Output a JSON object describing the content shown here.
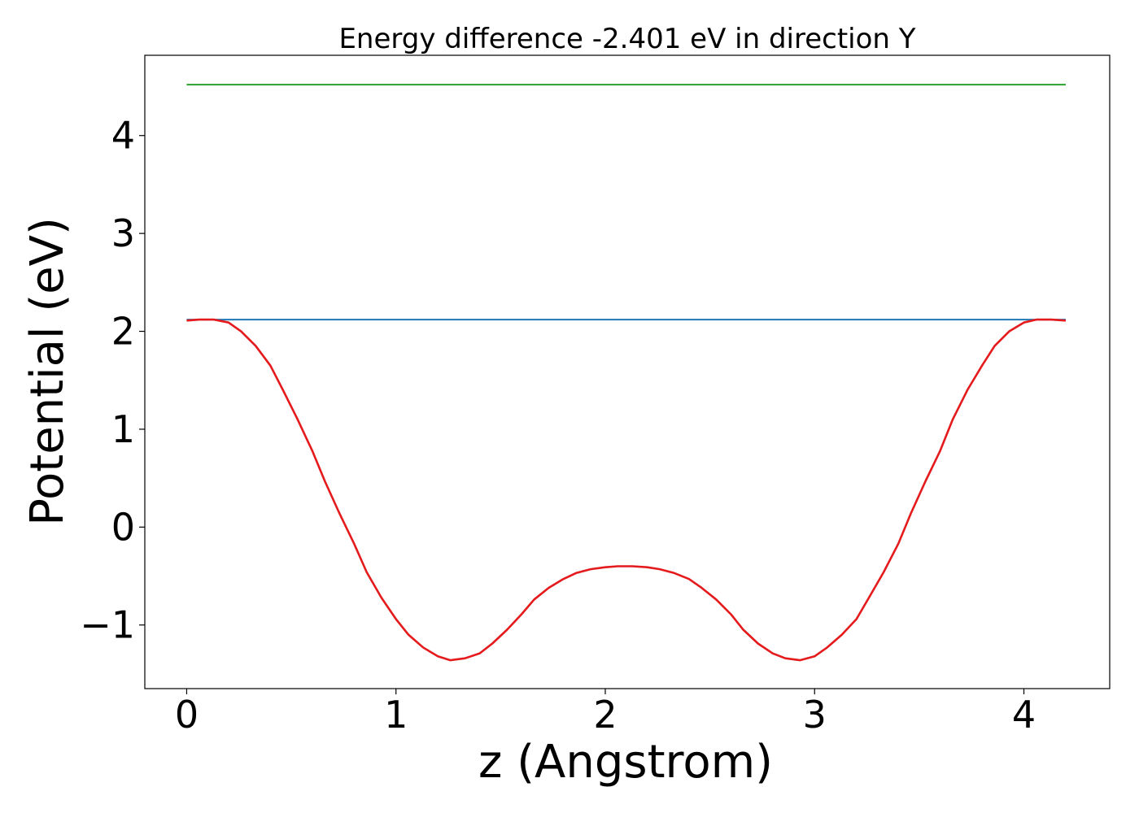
{
  "chart_data": {
    "type": "line",
    "title": "Energy difference -2.401 eV in direction Y",
    "xlabel": "z (Angstrom)",
    "ylabel": "Potential (eV)",
    "xlim": [
      -0.2,
      4.41
    ],
    "ylim": [
      -1.65,
      4.82
    ],
    "x_ticks": [
      {
        "value": 0,
        "label": "0"
      },
      {
        "value": 1,
        "label": "1"
      },
      {
        "value": 2,
        "label": "2"
      },
      {
        "value": 3,
        "label": "3"
      },
      {
        "value": 4,
        "label": "4"
      }
    ],
    "y_ticks": [
      {
        "value": -1,
        "label": "−1"
      },
      {
        "value": 0,
        "label": "0"
      },
      {
        "value": 1,
        "label": "1"
      },
      {
        "value": 2,
        "label": "2"
      },
      {
        "value": 3,
        "label": "3"
      },
      {
        "value": 4,
        "label": "4"
      }
    ],
    "grid": false,
    "series": [
      {
        "color": "#2ca02c",
        "x": [
          0,
          4.2
        ],
        "y": [
          4.52,
          4.52
        ]
      },
      {
        "color": "#1f77b4",
        "x": [
          0,
          4.2
        ],
        "y": [
          2.12,
          2.12
        ]
      },
      {
        "color": "#e41a1c",
        "x": [
          0,
          0.06,
          0.13,
          0.2,
          0.26,
          0.33,
          0.4,
          0.46,
          0.53,
          0.6,
          0.66,
          0.73,
          0.8,
          0.86,
          0.93,
          1.0,
          1.06,
          1.13,
          1.2,
          1.26,
          1.33,
          1.4,
          1.46,
          1.53,
          1.6,
          1.66,
          1.73,
          1.8,
          1.86,
          1.93,
          2.0,
          2.06,
          2.13,
          2.2,
          2.26,
          2.33,
          2.4,
          2.46,
          2.53,
          2.6,
          2.66,
          2.73,
          2.8,
          2.86,
          2.93,
          3.0,
          3.06,
          3.13,
          3.2,
          3.26,
          3.33,
          3.4,
          3.46,
          3.53,
          3.6,
          3.66,
          3.73,
          3.8,
          3.86,
          3.93,
          4.0,
          4.06,
          4.13,
          4.2
        ],
        "y": [
          2.11,
          2.12,
          2.12,
          2.09,
          2.0,
          1.85,
          1.65,
          1.4,
          1.1,
          0.78,
          0.47,
          0.14,
          -0.17,
          -0.46,
          -0.72,
          -0.94,
          -1.1,
          -1.23,
          -1.32,
          -1.36,
          -1.34,
          -1.29,
          -1.19,
          -1.05,
          -0.89,
          -0.74,
          -0.62,
          -0.53,
          -0.47,
          -0.43,
          -0.41,
          -0.4,
          -0.4,
          -0.41,
          -0.43,
          -0.47,
          -0.53,
          -0.62,
          -0.74,
          -0.89,
          -1.05,
          -1.19,
          -1.29,
          -1.34,
          -1.36,
          -1.32,
          -1.23,
          -1.1,
          -0.94,
          -0.72,
          -0.46,
          -0.17,
          0.14,
          0.47,
          0.78,
          1.1,
          1.4,
          1.65,
          1.85,
          2.0,
          2.09,
          2.12,
          2.12,
          2.11
        ]
      }
    ]
  }
}
